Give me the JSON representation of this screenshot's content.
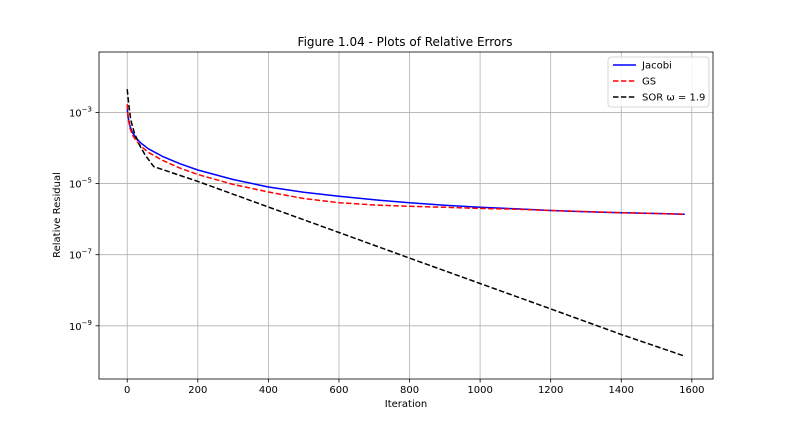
{
  "chart_data": {
    "type": "line",
    "title": "Figure 1.04 - Plots of Relative Errors",
    "xlabel": "Iteration",
    "ylabel": "Relative Residual",
    "xlim": [
      -80,
      1660
    ],
    "ylim": [
      3.2e-11,
      0.05
    ],
    "yscale": "log",
    "grid": true,
    "legend_position": "top-right",
    "x_ticks": [
      0,
      200,
      400,
      600,
      800,
      1000,
      1200,
      1400,
      1600
    ],
    "y_ticks": [
      {
        "value": 0.001,
        "mantissa": "10",
        "exponent": "−3"
      },
      {
        "value": 1e-05,
        "mantissa": "10",
        "exponent": "−5"
      },
      {
        "value": 1e-07,
        "mantissa": "10",
        "exponent": "−7"
      },
      {
        "value": 1e-09,
        "mantissa": "10",
        "exponent": "−9"
      }
    ],
    "series": [
      {
        "name": "Jacobi",
        "color": "#0000ff",
        "dash": "solid",
        "x": [
          0,
          3,
          8,
          15,
          25,
          40,
          60,
          100,
          150,
          200,
          300,
          400,
          500,
          600,
          700,
          800,
          900,
          1000,
          1100,
          1200,
          1300,
          1400,
          1500,
          1580
        ],
        "y": [
          0.0013,
          0.0007,
          0.0004,
          0.00027,
          0.00019,
          0.000135,
          9.5e-05,
          5.8e-05,
          3.6e-05,
          2.4e-05,
          1.3e-05,
          8e-06,
          5.7e-06,
          4.4e-06,
          3.5e-06,
          2.9e-06,
          2.45e-06,
          2.15e-06,
          1.95e-06,
          1.75e-06,
          1.62e-06,
          1.52e-06,
          1.44e-06,
          1.38e-06
        ]
      },
      {
        "name": "GS",
        "color": "#ff0000",
        "dash": "dashed",
        "x": [
          0,
          3,
          8,
          15,
          25,
          40,
          60,
          100,
          150,
          200,
          300,
          400,
          500,
          600,
          700,
          800,
          900,
          1000,
          1100,
          1200,
          1300,
          1400,
          1500,
          1580
        ],
        "y": [
          0.0017,
          0.00065,
          0.00035,
          0.00023,
          0.00016,
          0.00011,
          7.5e-05,
          4.5e-05,
          2.7e-05,
          1.8e-05,
          9.5e-06,
          5.8e-06,
          3.8e-06,
          2.9e-06,
          2.5e-06,
          2.3e-06,
          2.15e-06,
          2e-06,
          1.9e-06,
          1.75e-06,
          1.63e-06,
          1.52e-06,
          1.44e-06,
          1.38e-06
        ]
      },
      {
        "name": "SOR ω = 1.9",
        "color": "#000000",
        "dash": "dashed",
        "x": [
          0,
          5,
          10,
          20,
          35,
          50,
          75,
          200,
          400,
          600,
          800,
          1000,
          1200,
          1400,
          1580
        ],
        "y": [
          0.0045,
          0.0015,
          0.0006,
          0.00027,
          0.00012,
          6.5e-05,
          3e-05,
          1.15e-05,
          2.2e-06,
          4.2e-07,
          8e-08,
          1.55e-08,
          3e-09,
          5.7e-10,
          1.4e-10
        ]
      }
    ]
  }
}
